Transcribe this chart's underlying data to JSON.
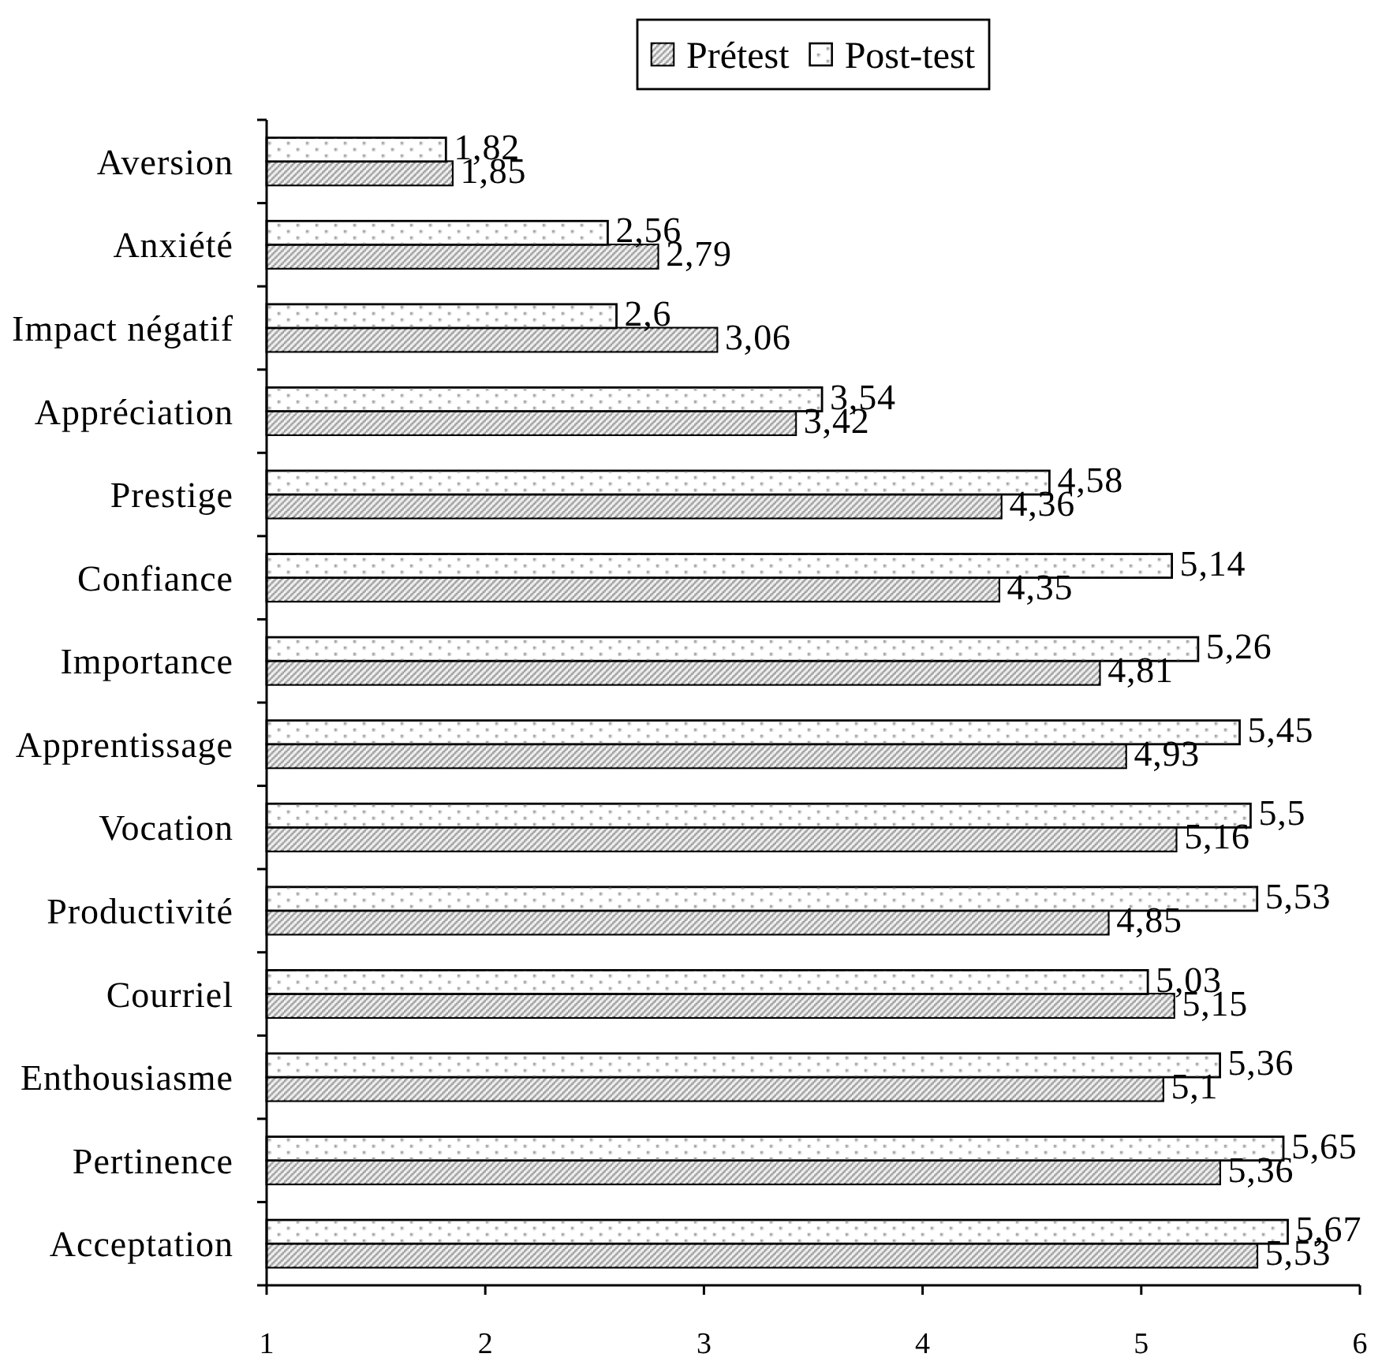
{
  "chart_data": {
    "type": "bar",
    "orientation": "horizontal",
    "categories": [
      "Aversion",
      "Anxiété",
      "Impact négatif",
      "Appréciation",
      "Prestige",
      "Confiance",
      "Importance",
      "Apprentissage",
      "Vocation",
      "Productivité",
      "Courriel",
      "Enthousiasme",
      "Pertinence",
      "Acceptation"
    ],
    "series": [
      {
        "name": "Prétest",
        "color": "#808080",
        "values": [
          1.85,
          2.79,
          3.06,
          3.42,
          4.36,
          4.35,
          4.81,
          4.93,
          5.16,
          4.85,
          5.15,
          5.1,
          5.36,
          5.53
        ],
        "value_labels": [
          "1,85",
          "2,79",
          "3,06",
          "3,42",
          "4,36",
          "4,35",
          "4,81",
          "4,93",
          "5,16",
          "4,85",
          "5,15",
          "5,1",
          "5,36",
          "5,53"
        ]
      },
      {
        "name": "Post-test",
        "color": "#ffffff",
        "values": [
          1.82,
          2.56,
          2.6,
          3.54,
          4.58,
          5.14,
          5.26,
          5.45,
          5.5,
          5.53,
          5.03,
          5.36,
          5.65,
          5.67
        ],
        "value_labels": [
          "1,82",
          "2,56",
          "2,6",
          "3,54",
          "4,58",
          "5,14",
          "5,26",
          "5,45",
          "5,5",
          "5,53",
          "5,03",
          "5,36",
          "5,65",
          "5,67"
        ]
      }
    ],
    "xlim": [
      1,
      6
    ],
    "xticks": [
      1,
      2,
      3,
      4,
      5,
      6
    ],
    "legend": "top"
  }
}
